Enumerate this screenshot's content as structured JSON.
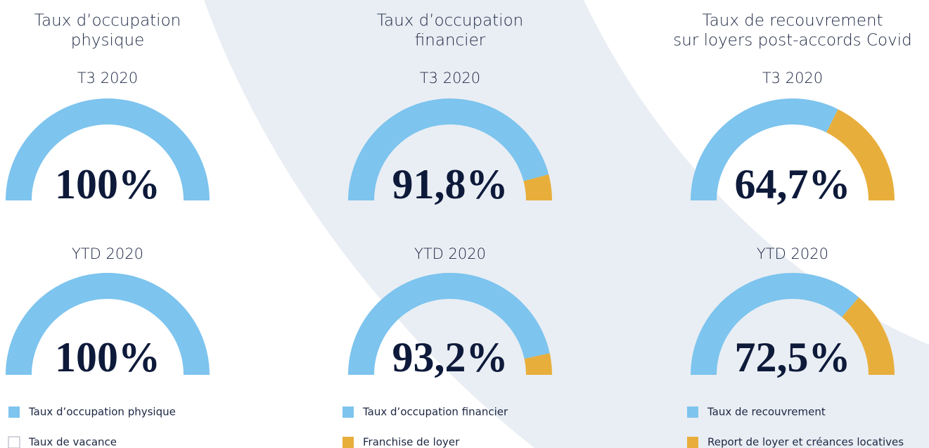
{
  "chart_data": [
    {
      "type": "gauge",
      "title": [
        "Taux d’occupation",
        "physique"
      ],
      "categories": [
        "T3 2020",
        "YTD 2020"
      ],
      "ylim": [
        0,
        100
      ],
      "series": [
        {
          "name": "Taux d’occupation physique",
          "color": "#7dc4ee",
          "values": [
            100,
            100
          ],
          "value_labels": [
            "100%",
            "100%"
          ]
        },
        {
          "name": "Taux de vacance",
          "color": "#ffffff",
          "values": [
            0,
            0
          ]
        }
      ]
    },
    {
      "type": "gauge",
      "title": [
        "Taux d’occupation",
        "financier"
      ],
      "categories": [
        "T3 2020",
        "YTD 2020"
      ],
      "ylim": [
        0,
        100
      ],
      "series": [
        {
          "name": "Taux d’occupation financier",
          "color": "#7dc4ee",
          "values": [
            91.8,
            93.2
          ],
          "value_labels": [
            "91,8%",
            "93,2%"
          ]
        },
        {
          "name": "Franchise de loyer",
          "color": "#e8ae3c",
          "values": [
            8.2,
            6.8
          ]
        }
      ]
    },
    {
      "type": "gauge",
      "title": [
        "Taux de recouvrement",
        "sur loyers post-accords Covid"
      ],
      "categories": [
        "T3 2020",
        "YTD 2020"
      ],
      "ylim": [
        0,
        100
      ],
      "series": [
        {
          "name": "Taux de recouvrement",
          "color": "#7dc4ee",
          "values": [
            64.7,
            72.5
          ],
          "value_labels": [
            "64,7%",
            "72,5%"
          ]
        },
        {
          "name": "Report de loyer et créances locatives",
          "color": "#e8ae3c",
          "values": [
            35.3,
            27.5
          ]
        }
      ]
    }
  ]
}
